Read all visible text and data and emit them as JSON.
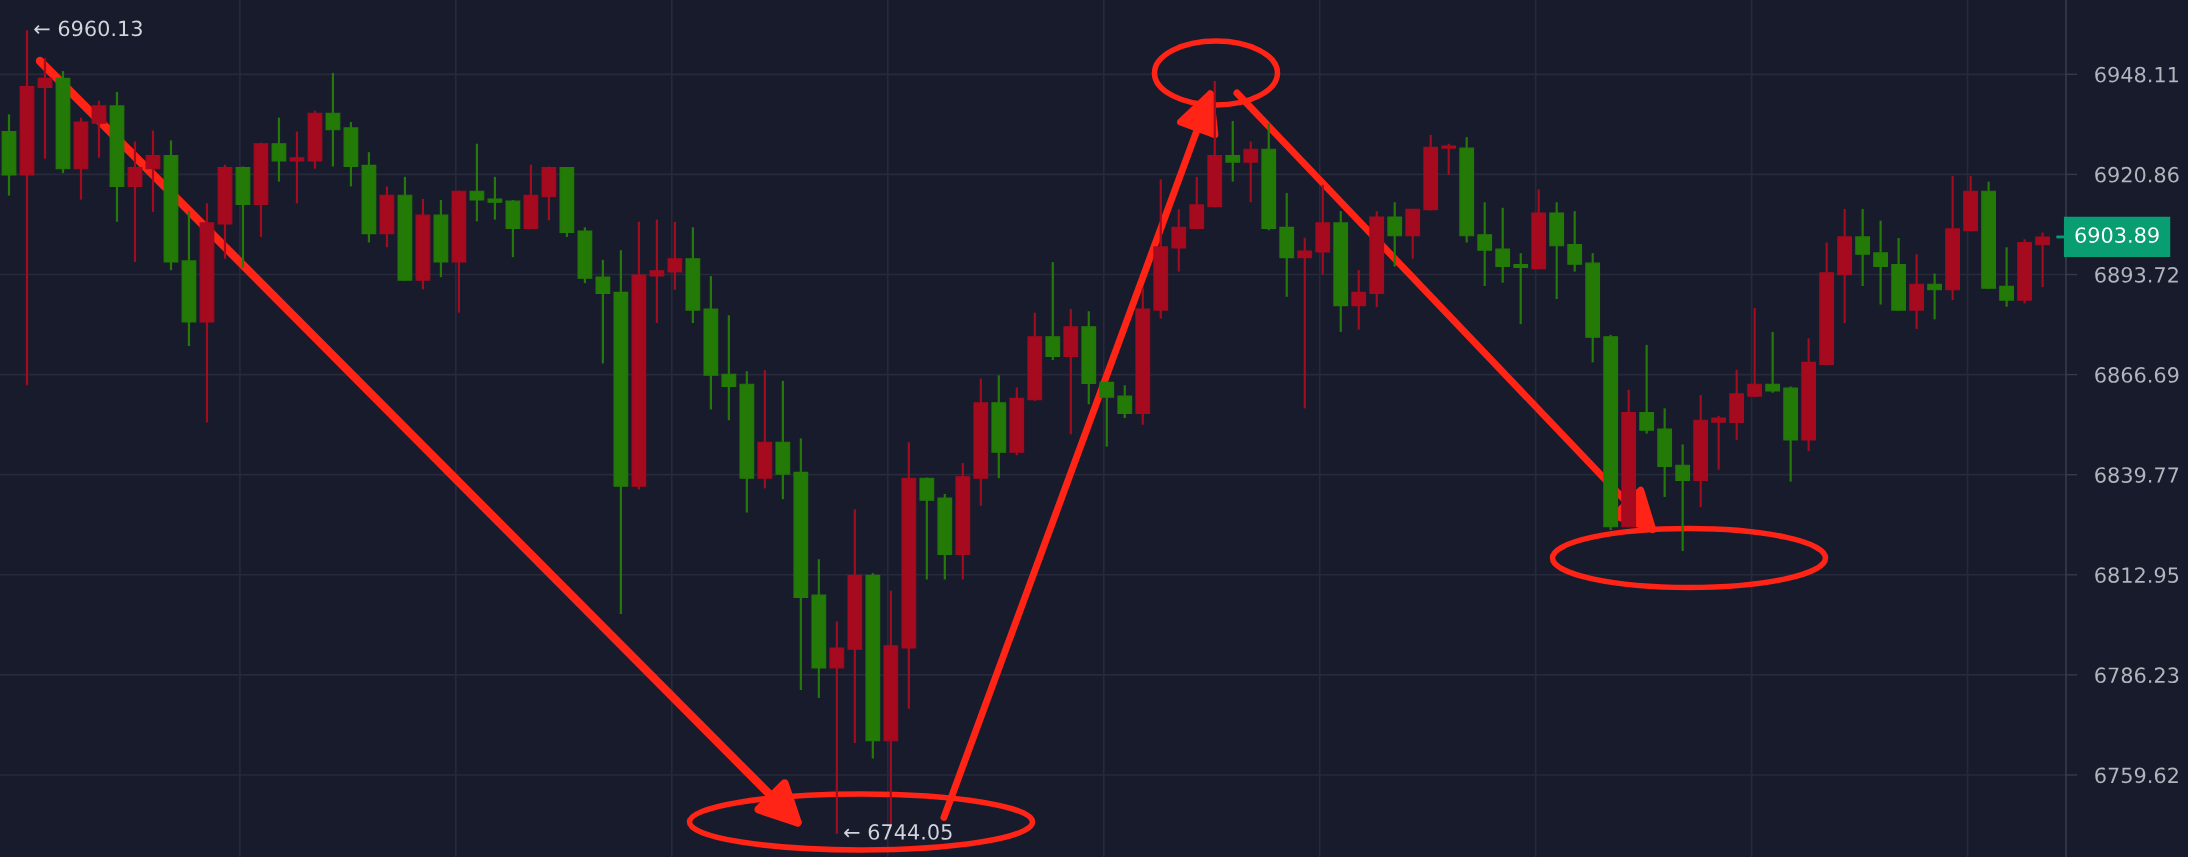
{
  "chart_data": {
    "type": "candlestick",
    "categories": [
      null,
      null,
      null,
      null,
      null,
      null,
      null,
      null,
      null,
      null,
      null,
      null,
      null,
      null,
      null,
      null,
      null,
      null,
      null,
      null,
      null,
      null,
      null,
      null,
      null,
      null,
      null,
      null,
      null,
      null,
      null,
      null,
      null,
      null,
      null,
      null,
      null,
      null,
      null,
      null,
      null,
      null,
      null,
      null,
      null,
      null,
      null,
      null,
      null,
      null,
      null,
      null,
      null,
      null,
      null,
      null,
      null,
      null,
      null,
      null,
      null,
      null,
      null,
      null,
      null,
      null,
      null,
      null,
      null,
      null,
      null,
      null,
      null,
      null,
      null,
      null,
      null,
      null,
      null,
      null,
      null,
      null,
      null,
      null,
      null,
      null,
      null,
      null,
      null,
      null,
      null,
      null,
      null,
      null,
      null,
      null,
      null,
      null,
      null,
      null,
      null,
      null,
      null,
      null,
      null,
      null,
      null,
      null,
      null,
      null,
      null,
      null,
      null,
      null
    ],
    "ohlc": [
      [
        6932.5,
        6937.2,
        6915.1,
        6920.7
      ],
      [
        6920.7,
        6960.13,
        6863.8,
        6944.8
      ],
      [
        6944.5,
        6952.5,
        6925.1,
        6947.0
      ],
      [
        6947.0,
        6949.0,
        6921.2,
        6922.4
      ],
      [
        6922.4,
        6936.3,
        6914.0,
        6935.1
      ],
      [
        6934.8,
        6940.9,
        6925.4,
        6939.5
      ],
      [
        6939.5,
        6943.3,
        6908.0,
        6917.6
      ],
      [
        6917.6,
        6929.8,
        6897.1,
        6922.7
      ],
      [
        6922.4,
        6932.8,
        6910.7,
        6926.0
      ],
      [
        6926.0,
        6930.1,
        6894.9,
        6897.1
      ],
      [
        6897.4,
        6910.9,
        6874.4,
        6880.9
      ],
      [
        6880.9,
        6913.0,
        6853.8,
        6907.7
      ],
      [
        6907.4,
        6923.5,
        6898.0,
        6922.7
      ],
      [
        6922.7,
        6923.0,
        6895.6,
        6912.7
      ],
      [
        6912.7,
        6929.5,
        6903.9,
        6929.2
      ],
      [
        6929.2,
        6936.3,
        6918.9,
        6924.5
      ],
      [
        6924.5,
        6932.5,
        6913.0,
        6925.4
      ],
      [
        6924.5,
        6938.2,
        6922.4,
        6937.5
      ],
      [
        6937.5,
        6948.5,
        6923.0,
        6933.0
      ],
      [
        6933.5,
        6935.1,
        6917.6,
        6923.0
      ],
      [
        6923.3,
        6926.9,
        6902.4,
        6904.8
      ],
      [
        6904.8,
        6917.6,
        6901.1,
        6915.2
      ],
      [
        6915.2,
        6920.2,
        6892.0,
        6892.2
      ],
      [
        6892.2,
        6914.2,
        6889.7,
        6909.8
      ],
      [
        6909.8,
        6913.9,
        6893.0,
        6897.1
      ],
      [
        6897.1,
        6916.5,
        6883.4,
        6916.3
      ],
      [
        6916.3,
        6929.2,
        6908.1,
        6913.9
      ],
      [
        6914.2,
        6920.2,
        6908.6,
        6913.3
      ],
      [
        6913.6,
        6913.9,
        6898.4,
        6906.2
      ],
      [
        6906.2,
        6923.5,
        6906.0,
        6915.2
      ],
      [
        6914.8,
        6923.0,
        6908.4,
        6922.7
      ],
      [
        6922.7,
        6922.9,
        6903.9,
        6905.1
      ],
      [
        6905.5,
        6906.5,
        6891.4,
        6892.7
      ],
      [
        6893.0,
        6897.7,
        6869.7,
        6888.6
      ],
      [
        6888.9,
        6900.3,
        6802.5,
        6836.7
      ],
      [
        6836.7,
        6908.0,
        6835.8,
        6893.6
      ],
      [
        6893.3,
        6908.6,
        6880.6,
        6894.7
      ],
      [
        6894.4,
        6908.0,
        6889.6,
        6898.0
      ],
      [
        6898.0,
        6906.5,
        6880.6,
        6884.1
      ],
      [
        6884.4,
        6893.3,
        6857.3,
        6866.5
      ],
      [
        6866.8,
        6882.7,
        6854.4,
        6863.5
      ],
      [
        6864.1,
        6867.6,
        6829.6,
        6838.8
      ],
      [
        6838.8,
        6867.9,
        6836.1,
        6848.5
      ],
      [
        6848.5,
        6865.0,
        6833.2,
        6839.9
      ],
      [
        6840.4,
        6849.5,
        6782.2,
        6806.9
      ],
      [
        6807.5,
        6817.1,
        6780.1,
        6788.1
      ],
      [
        6788.1,
        6800.5,
        6744.05,
        6793.4
      ],
      [
        6793.1,
        6830.5,
        6768.1,
        6812.8
      ],
      [
        6812.8,
        6813.4,
        6764.0,
        6768.7
      ],
      [
        6768.7,
        6808.7,
        6746.4,
        6794.0
      ],
      [
        6793.4,
        6848.5,
        6777.2,
        6838.8
      ],
      [
        6838.8,
        6839.0,
        6811.7,
        6832.9
      ],
      [
        6833.5,
        6834.6,
        6811.7,
        6818.4
      ],
      [
        6818.4,
        6842.9,
        6811.7,
        6839.2
      ],
      [
        6838.8,
        6865.6,
        6831.4,
        6859.1
      ],
      [
        6859.1,
        6866.5,
        6838.8,
        6845.8
      ],
      [
        6845.8,
        6863.2,
        6845.0,
        6860.3
      ],
      [
        6859.9,
        6883.4,
        6859.6,
        6876.9
      ],
      [
        6876.9,
        6897.1,
        6870.6,
        6871.6
      ],
      [
        6871.6,
        6884.4,
        6850.6,
        6879.6
      ],
      [
        6879.6,
        6883.8,
        6858.7,
        6864.3
      ],
      [
        6864.6,
        6864.8,
        6847.3,
        6860.6
      ],
      [
        6860.9,
        6863.8,
        6855.0,
        6856.2
      ],
      [
        6856.2,
        6890.0,
        6853.2,
        6884.4
      ],
      [
        6884.1,
        6919.5,
        6881.8,
        6901.2
      ],
      [
        6900.9,
        6911.4,
        6894.5,
        6906.5
      ],
      [
        6906.2,
        6920.2,
        6906.0,
        6912.6
      ],
      [
        6912.1,
        6946.3,
        6911.9,
        6926.0
      ],
      [
        6926.0,
        6935.4,
        6918.9,
        6924.2
      ],
      [
        6924.2,
        6929.8,
        6913.3,
        6927.7
      ],
      [
        6927.7,
        6934.8,
        6905.7,
        6906.2
      ],
      [
        6906.5,
        6915.8,
        6887.7,
        6898.3
      ],
      [
        6898.3,
        6903.7,
        6857.6,
        6900.1
      ],
      [
        6899.8,
        6918.0,
        6893.7,
        6907.7
      ],
      [
        6907.7,
        6910.9,
        6878.2,
        6885.3
      ],
      [
        6885.3,
        6894.9,
        6878.8,
        6888.9
      ],
      [
        6888.6,
        6910.9,
        6884.9,
        6909.3
      ],
      [
        6909.3,
        6913.3,
        6895.9,
        6904.2
      ],
      [
        6904.2,
        6911.5,
        6898.0,
        6911.4
      ],
      [
        6911.3,
        6931.6,
        6911.1,
        6928.2
      ],
      [
        6928.0,
        6929.2,
        6920.7,
        6928.6
      ],
      [
        6928.0,
        6931.0,
        6902.4,
        6904.2
      ],
      [
        6904.5,
        6913.3,
        6890.6,
        6900.3
      ],
      [
        6900.6,
        6911.8,
        6891.5,
        6895.9
      ],
      [
        6896.4,
        6899.5,
        6880.3,
        6895.6
      ],
      [
        6895.3,
        6916.8,
        6895.1,
        6910.4
      ],
      [
        6910.4,
        6913.3,
        6887.1,
        6901.5
      ],
      [
        6901.8,
        6910.9,
        6894.5,
        6896.5
      ],
      [
        6896.8,
        6899.5,
        6870.0,
        6876.8
      ],
      [
        6876.9,
        6877.4,
        6824.9,
        6825.8
      ],
      [
        6825.8,
        6862.6,
        6825.6,
        6856.5
      ],
      [
        6856.5,
        6874.7,
        6850.8,
        6851.7
      ],
      [
        6852.0,
        6857.6,
        6833.8,
        6842.0
      ],
      [
        6842.3,
        6847.9,
        6819.3,
        6838.2
      ],
      [
        6838.2,
        6861.2,
        6831.1,
        6854.4
      ],
      [
        6853.9,
        6855.6,
        6841.1,
        6855.0
      ],
      [
        6853.8,
        6868.0,
        6849.1,
        6861.5
      ],
      [
        6860.9,
        6884.7,
        6860.6,
        6864.1
      ],
      [
        6864.1,
        6878.2,
        6861.8,
        6862.3
      ],
      [
        6863.1,
        6863.5,
        6837.9,
        6849.1
      ],
      [
        6849.1,
        6876.5,
        6846.1,
        6870.0
      ],
      [
        6869.4,
        6902.4,
        6869.2,
        6894.2
      ],
      [
        6893.7,
        6911.5,
        6880.6,
        6903.9
      ],
      [
        6903.9,
        6911.5,
        6890.6,
        6899.2
      ],
      [
        6899.6,
        6908.3,
        6885.6,
        6895.9
      ],
      [
        6896.4,
        6903.6,
        6883.9,
        6884.1
      ],
      [
        6884.1,
        6899.2,
        6879.0,
        6891.1
      ],
      [
        6891.1,
        6894.0,
        6881.6,
        6889.6
      ],
      [
        6889.6,
        6920.4,
        6886.8,
        6906.1
      ],
      [
        6905.6,
        6920.4,
        6905.5,
        6916.3
      ],
      [
        6916.3,
        6918.9,
        6889.8,
        6890.0
      ],
      [
        6890.5,
        6901.1,
        6885.0,
        6886.8
      ],
      [
        6886.8,
        6903.3,
        6885.9,
        6902.4
      ],
      [
        6901.8,
        6905.1,
        6890.3,
        6903.89
      ]
    ],
    "colors": [
      "#237a07",
      "#a50a1e",
      "#a50a1e",
      "#237a07",
      "#a50a1e",
      "#a50a1e",
      "#237a07",
      "#a50a1e",
      "#a50a1e",
      "#237a07",
      "#237a07",
      "#a50a1e",
      "#a50a1e",
      "#237a07",
      "#a50a1e",
      "#237a07",
      "#a50a1e",
      "#a50a1e",
      "#237a07",
      "#237a07",
      "#237a07",
      "#a50a1e",
      "#237a07",
      "#a50a1e",
      "#237a07",
      "#a50a1e",
      "#237a07",
      "#237a07",
      "#237a07",
      "#a50a1e",
      "#a50a1e",
      "#237a07",
      "#237a07",
      "#237a07",
      "#237a07",
      "#a50a1e",
      "#a50a1e",
      "#a50a1e",
      "#237a07",
      "#237a07",
      "#237a07",
      "#237a07",
      "#a50a1e",
      "#237a07",
      "#237a07",
      "#237a07",
      "#a50a1e",
      "#a50a1e",
      "#237a07",
      "#a50a1e",
      "#a50a1e",
      "#237a07",
      "#237a07",
      "#a50a1e",
      "#a50a1e",
      "#237a07",
      "#a50a1e",
      "#a50a1e",
      "#237a07",
      "#a50a1e",
      "#237a07",
      "#237a07",
      "#237a07",
      "#a50a1e",
      "#a50a1e",
      "#a50a1e",
      "#a50a1e",
      "#a50a1e",
      "#237a07",
      "#a50a1e",
      "#237a07",
      "#237a07",
      "#a50a1e",
      "#a50a1e",
      "#237a07",
      "#a50a1e",
      "#a50a1e",
      "#237a07",
      "#a50a1e",
      "#a50a1e",
      "#a50a1e",
      "#237a07",
      "#237a07",
      "#237a07",
      "#237a07",
      "#a50a1e",
      "#237a07",
      "#237a07",
      "#237a07",
      "#237a07",
      "#a50a1e",
      "#237a07",
      "#237a07",
      "#237a07",
      "#a50a1e",
      "#a50a1e",
      "#a50a1e",
      "#a50a1e",
      "#237a07",
      "#237a07",
      "#a50a1e",
      "#a50a1e",
      "#a50a1e",
      "#237a07",
      "#237a07",
      "#237a07",
      "#a50a1e",
      "#237a07",
      "#a50a1e",
      "#a50a1e",
      "#237a07",
      "#237a07",
      "#a50a1e",
      "#a50a1e"
    ],
    "log": true,
    "ylim": [
      6737.9,
      6968.4
    ],
    "yticks": [
      6759.62,
      6786.23,
      6812.95,
      6839.77,
      6866.69,
      6893.72,
      6920.86,
      6948.11
    ],
    "tick_labels": "y",
    "grid": true,
    "annotations": [
      "← 6960.13",
      "← 6744.05",
      "6903.89"
    ]
  }
}
